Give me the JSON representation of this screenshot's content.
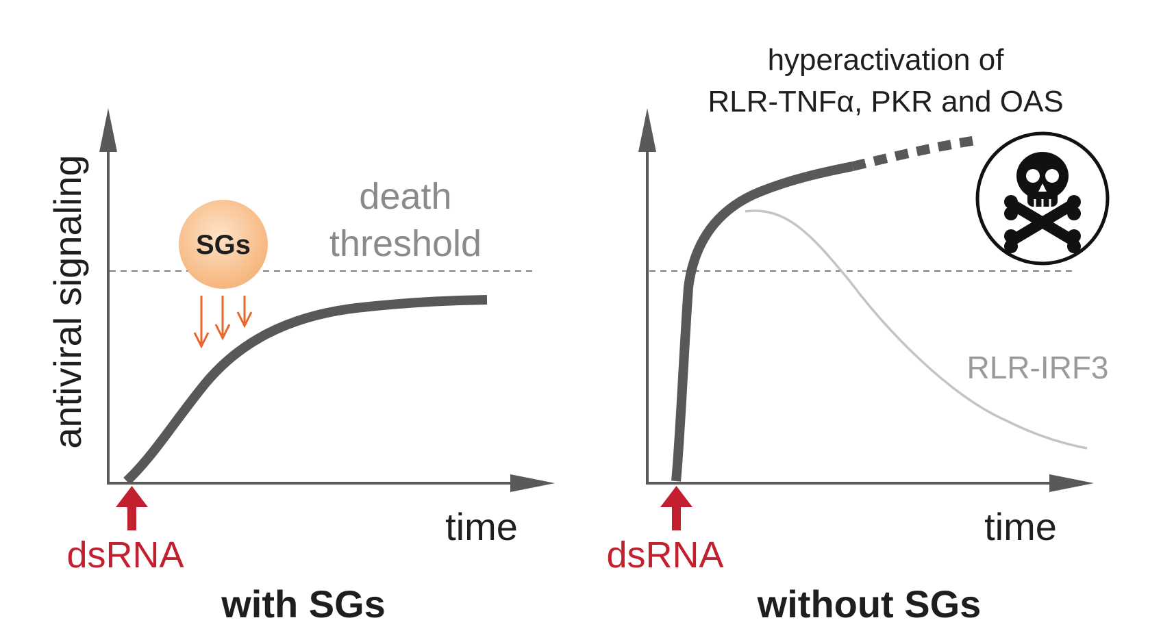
{
  "colors": {
    "axis": "#595959",
    "main_curve": "#585858",
    "threshold_text": "#8a8a8a",
    "threshold_line": "#555555",
    "irf3_curve": "#c4c4c4",
    "irf3_text": "#9a9a9a",
    "dsrna": "#c2202f",
    "sg_arrows": "#e8662a",
    "sg_fill_inner": "#fde3c8",
    "sg_fill_outer": "#f6b57c",
    "text_dark": "#1e1e1e"
  },
  "left_panel": {
    "y_axis_label": "antiviral signaling",
    "x_axis_label": "time",
    "stimulus_label": "dsRNA",
    "sg_label": "SGs",
    "threshold_label_line1": "death",
    "threshold_label_line2": "threshold",
    "caption": "with SGs"
  },
  "right_panel": {
    "annotation_line1": "hyperactivation of",
    "annotation_line2": "RLR-TNFα, PKR and OAS",
    "secondary_curve_label": "RLR-IRF3",
    "x_axis_label": "time",
    "stimulus_label": "dsRNA",
    "caption": "without SGs",
    "death_icon": "skull-crossbones-icon"
  }
}
